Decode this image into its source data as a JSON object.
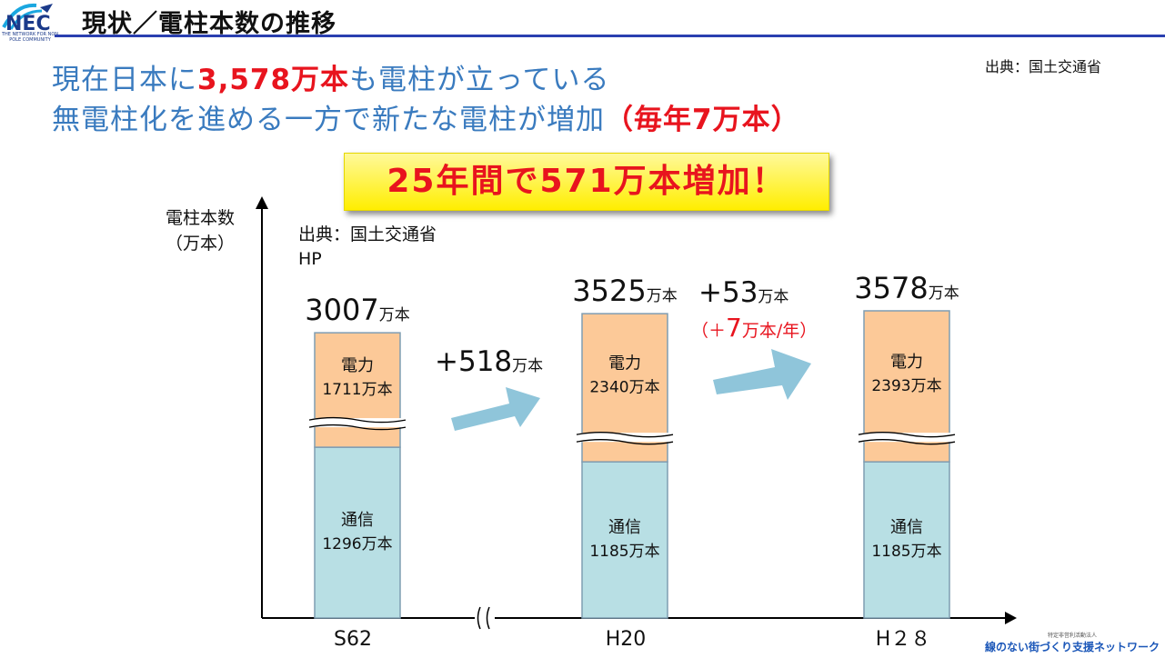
{
  "header": {
    "title": "現状／電柱本数の推移",
    "logo_text": "THE NETWORK FOR NON POLE COMMUNITY"
  },
  "source_top": "出典：国土交通省",
  "headline": {
    "line1_prefix": "現在日本に",
    "line1_highlight": "3,578万本",
    "line1_suffix": "も電柱が立っている",
    "line2_prefix": "無電柱化を進める一方で新たな電柱が増加",
    "line2_highlight": "（毎年7万本）"
  },
  "banner": "25年間で571万本増加！",
  "footer_logo": {
    "small": "特定非営利活動法人",
    "main": "線のない街づくり支援ネットワーク"
  },
  "colors": {
    "electric": "#fcc998",
    "telecom": "#b8dfe4",
    "bar_border": "#7f9db2",
    "arrow": "#8fc5da",
    "accent_red": "#e8141e",
    "headline_blue": "#3a7bbf"
  },
  "chart_data": {
    "type": "bar",
    "stacked": true,
    "ylabel": "電柱本数\n（万本）",
    "source_note": "出典：国土交通省\nHP",
    "categories": [
      "S62",
      "H20",
      "H２８"
    ],
    "totals": [
      3007,
      3525,
      3578
    ],
    "total_unit": "万本",
    "series": [
      {
        "name": "通信",
        "values": [
          1296,
          1185,
          1185
        ]
      },
      {
        "name": "電力",
        "values": [
          1711,
          2340,
          2393
        ]
      }
    ],
    "segment_labels": {
      "electric": [
        "1711万本",
        "2340万本",
        "2393万本"
      ],
      "telecom": [
        "1296万本",
        "1185万本",
        "1185万本"
      ]
    },
    "axis_break": true,
    "annotations": [
      {
        "text": "+518",
        "unit": "万本"
      },
      {
        "text": "+53",
        "unit": "万本"
      },
      {
        "text": "（＋",
        "emph": "7",
        "unit": "万本/年）"
      }
    ]
  }
}
